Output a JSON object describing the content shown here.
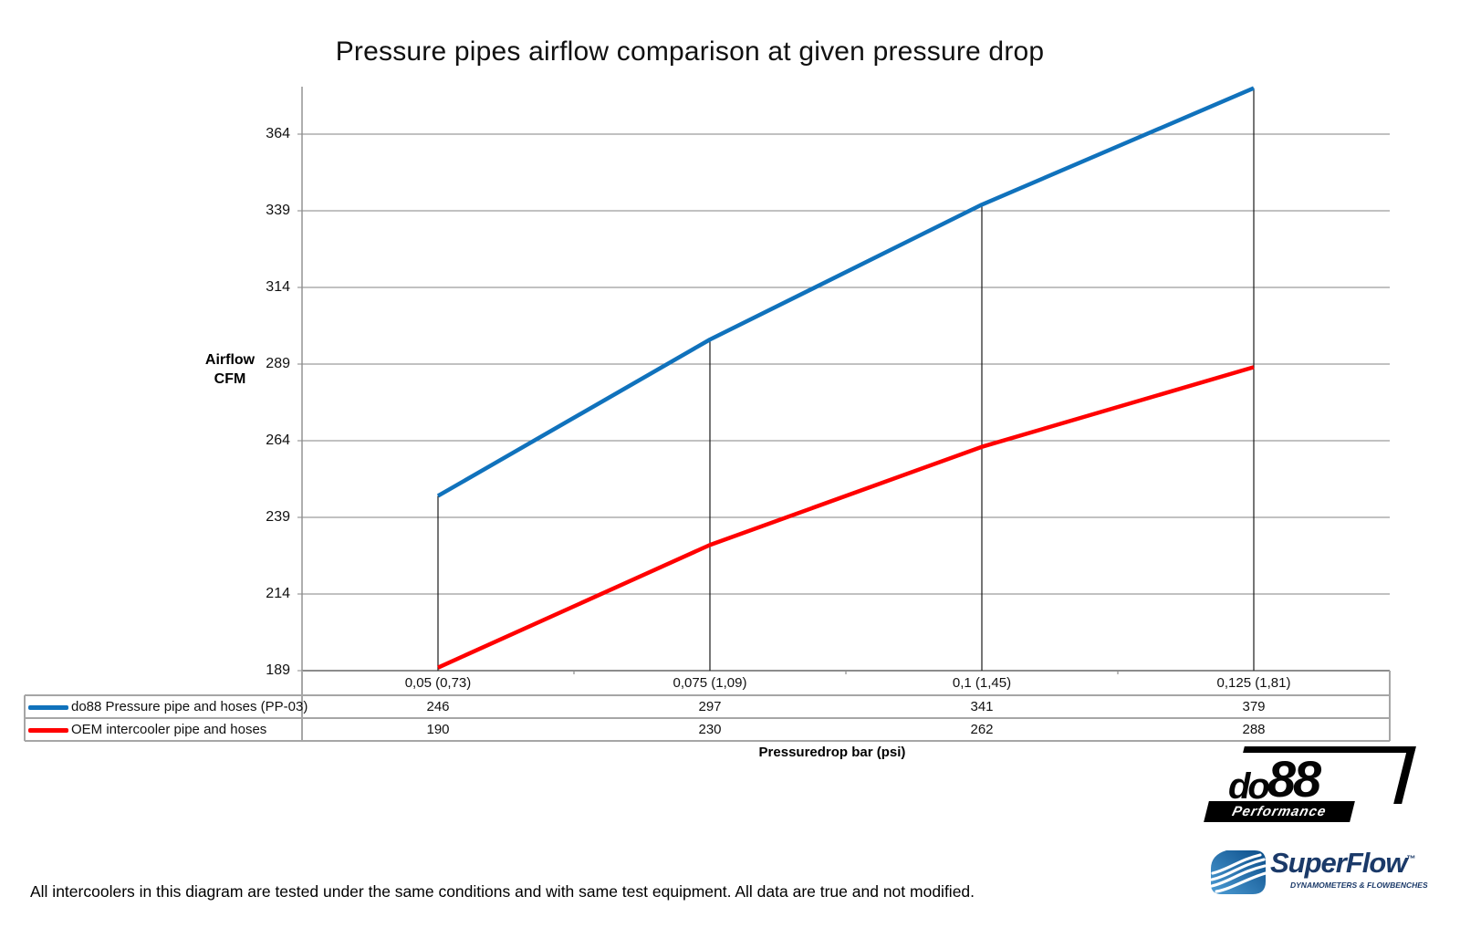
{
  "page": {
    "title": "Pressure pipes airflow comparison at given pressure drop",
    "footer_note": "All intercoolers in this diagram are tested under the same conditions and with same test equipment. All data are true and not modified."
  },
  "chart_data": {
    "type": "line",
    "title": "Pressure pipes airflow comparison at given pressure drop",
    "xlabel": "Pressuredrop bar (psi)",
    "ylabel": "Airflow CFM",
    "ylabel_lines": [
      "Airflow",
      "CFM"
    ],
    "categories": [
      "0,05 (0,73)",
      "0,075 (1,09)",
      "0,1 (1,45)",
      "0,125 (1,81)"
    ],
    "series": [
      {
        "name": "do88 Pressure pipe and hoses (PP-03)",
        "color": "#1072BC",
        "values": [
          246,
          297,
          341,
          379
        ]
      },
      {
        "name": "OEM intercooler pipe and hoses",
        "color": "#FF0000",
        "values": [
          190,
          230,
          262,
          288
        ]
      }
    ],
    "yticks": [
      189,
      214,
      239,
      264,
      289,
      314,
      339,
      364
    ],
    "ylim": [
      189,
      384
    ],
    "grid": "horizontal-gridlines",
    "legend_position": "bottom-left-table",
    "annotations": "vertical droplines at each category from do88 series down to x-axis"
  },
  "logos": {
    "do88": {
      "brand_part1": "do",
      "brand_part2": "88",
      "tagline": "Performance"
    },
    "superflow": {
      "brand": "SuperFlow",
      "trademark": "™",
      "tagline": "DYNAMOMETERS & FLOWBENCHES"
    }
  },
  "colors": {
    "do88_series": "#1072BC",
    "oem_series": "#FF0000",
    "gridline": "#9C9C9C",
    "axis": "#8C8C8C",
    "dropline": "#1A1A1A",
    "table_border": "#A6A6A6"
  }
}
